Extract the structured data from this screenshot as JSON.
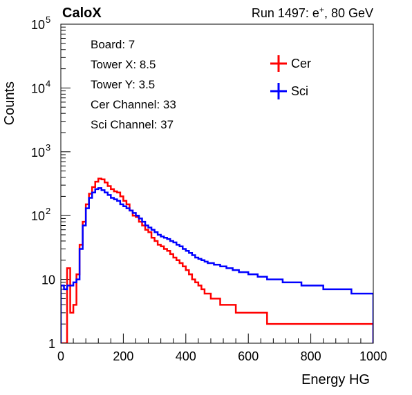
{
  "header": {
    "brand": "CaloX",
    "run_prefix": "Run 1497: e",
    "run_superscript": "+",
    "run_suffix": ", 80 GeV"
  },
  "info_box": {
    "lines": [
      "Board: 7",
      "Tower X: 8.5",
      "Tower Y: 3.5",
      "Cer Channel: 33",
      "Sci Channel: 37"
    ]
  },
  "colors": {
    "Cer": "#ff0000",
    "Sci": "#0000ff",
    "axis": "#000000"
  },
  "chart_data": {
    "type": "line",
    "xlabel": "Energy HG",
    "ylabel": "Counts",
    "xlim": [
      0,
      1000
    ],
    "ylim": [
      1,
      100000
    ],
    "yscale": "log",
    "grid": false,
    "legend_position": "top-right",
    "x_ticks": [
      "0",
      "200",
      "400",
      "600",
      "800",
      "1000"
    ],
    "y_ticks": [
      {
        "base": "1",
        "exp": ""
      },
      {
        "base": "10",
        "exp": ""
      },
      {
        "base": "10",
        "exp": "2"
      },
      {
        "base": "10",
        "exp": "3"
      },
      {
        "base": "10",
        "exp": "4"
      },
      {
        "base": "10",
        "exp": "5"
      }
    ],
    "bin_width": 10,
    "bin_centers": [
      5,
      15,
      25,
      35,
      45,
      55,
      65,
      75,
      85,
      95,
      105,
      115,
      125,
      135,
      145,
      155,
      165,
      175,
      185,
      195,
      205,
      215,
      225,
      235,
      245,
      255,
      265,
      275,
      285,
      295,
      305,
      315,
      325,
      335,
      345,
      355,
      365,
      375,
      385,
      395,
      405,
      415,
      425,
      435,
      445,
      455,
      465,
      475,
      485,
      495,
      505,
      515,
      525,
      535,
      545,
      555,
      565,
      575,
      585,
      595,
      605,
      615,
      625,
      635,
      645,
      655,
      665,
      675,
      685,
      695,
      705,
      715,
      725,
      735,
      745,
      755,
      765,
      775,
      785,
      795,
      805,
      815,
      825,
      835,
      845,
      855,
      865,
      875,
      885,
      895,
      905,
      915,
      925,
      935,
      945,
      955,
      965,
      975,
      985,
      995
    ],
    "series": [
      {
        "name": "Cer",
        "values": [
          1,
          1,
          15,
          3,
          4,
          12,
          35,
          80,
          150,
          220,
          280,
          340,
          380,
          370,
          330,
          290,
          260,
          240,
          230,
          200,
          170,
          150,
          120,
          100,
          95,
          80,
          70,
          60,
          55,
          45,
          40,
          35,
          33,
          30,
          28,
          25,
          22,
          20,
          18,
          16,
          14,
          12,
          10,
          9,
          8,
          7,
          6,
          6,
          5,
          5,
          5,
          4,
          4,
          4,
          4,
          4,
          3,
          3,
          3,
          3,
          3,
          3,
          3,
          3,
          3,
          3,
          2,
          2,
          2,
          2,
          2,
          2,
          2,
          2,
          2,
          2,
          2,
          2,
          2,
          2,
          2,
          2,
          2,
          2,
          2,
          2,
          2,
          2,
          2,
          2,
          2,
          2,
          2,
          2,
          2,
          2,
          2,
          2,
          2,
          2
        ]
      },
      {
        "name": "Sci",
        "values": [
          8,
          7,
          8,
          8,
          9,
          10,
          30,
          70,
          130,
          190,
          230,
          260,
          270,
          250,
          230,
          210,
          190,
          180,
          170,
          150,
          140,
          130,
          120,
          110,
          100,
          90,
          80,
          70,
          65,
          60,
          55,
          50,
          47,
          45,
          43,
          40,
          38,
          35,
          33,
          30,
          28,
          26,
          24,
          22,
          21,
          20,
          19,
          18,
          18,
          17,
          17,
          16,
          16,
          15,
          15,
          14,
          14,
          13,
          13,
          13,
          12,
          12,
          12,
          11,
          11,
          11,
          10,
          10,
          10,
          10,
          10,
          9,
          9,
          9,
          9,
          9,
          9,
          8,
          8,
          8,
          8,
          8,
          8,
          8,
          7,
          7,
          7,
          7,
          7,
          7,
          7,
          7,
          7,
          6,
          6,
          6,
          6,
          6,
          6,
          6
        ]
      }
    ]
  }
}
